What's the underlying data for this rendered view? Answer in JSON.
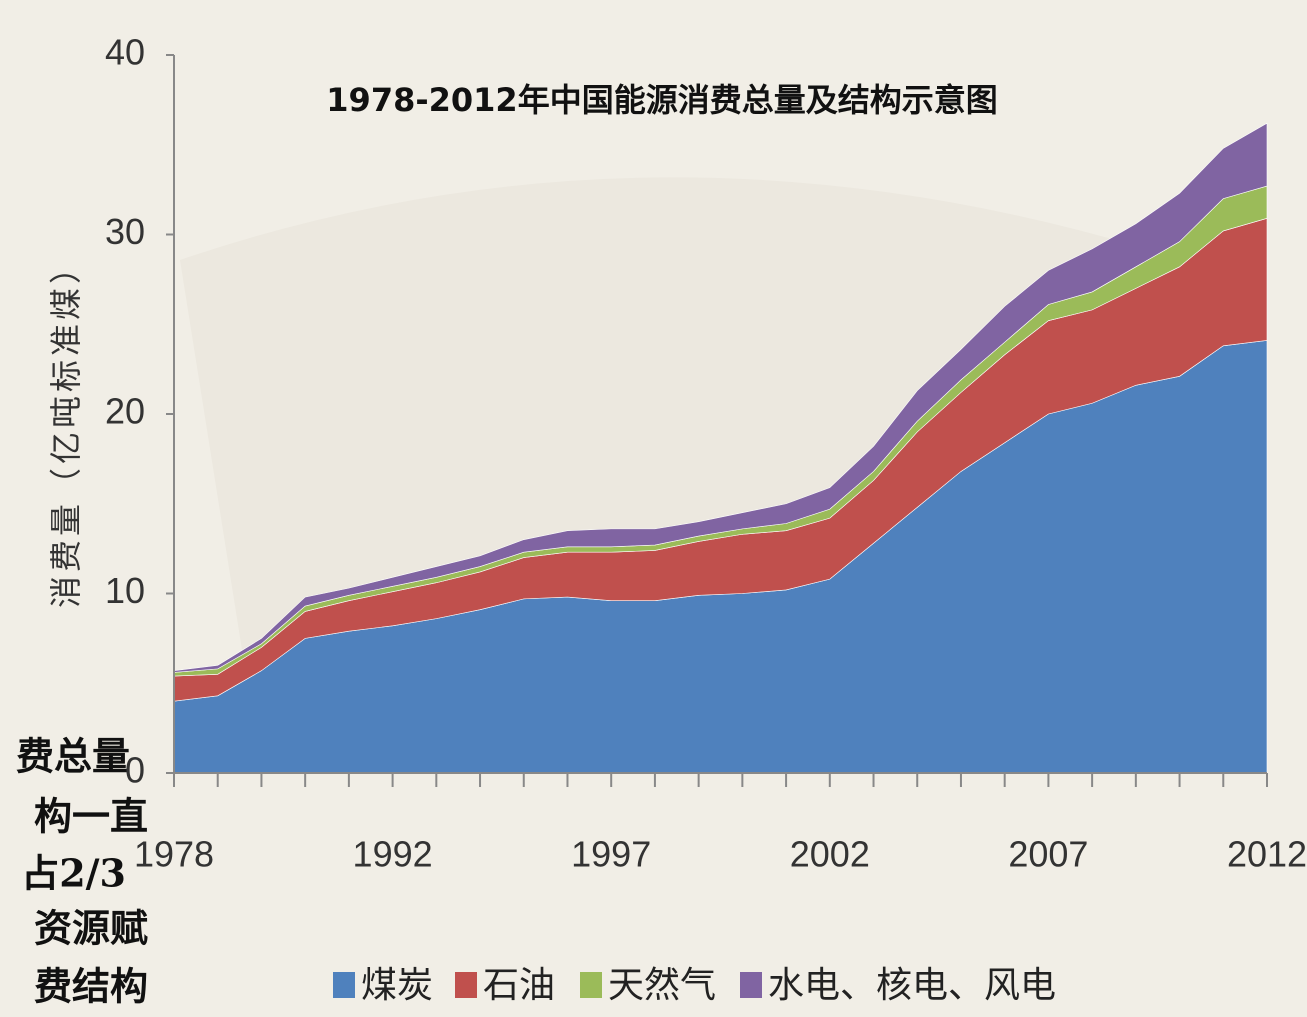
{
  "chart_data": {
    "type": "stacked-area",
    "title": "1978-2012年中国能源消费总量及结构示意图",
    "y_label": "消费量（亿吨标准煤）",
    "categories": [
      "1978",
      null,
      null,
      null,
      null,
      "1992",
      null,
      null,
      null,
      null,
      "1997",
      null,
      null,
      null,
      null,
      "2002",
      null,
      null,
      null,
      null,
      "2007",
      null,
      null,
      null,
      null,
      "2012"
    ],
    "ylim": [
      0,
      40
    ],
    "yticks": [
      0,
      10,
      20,
      30,
      40
    ],
    "series": [
      {
        "name": "煤炭",
        "color": "#4f81bd",
        "values": [
          4.0,
          4.3,
          5.7,
          7.5,
          7.9,
          8.2,
          8.6,
          9.1,
          9.7,
          9.8,
          9.6,
          9.6,
          9.9,
          10.0,
          10.2,
          10.8,
          12.8,
          14.8,
          16.8,
          18.4,
          20.0,
          20.6,
          21.6,
          22.1,
          23.8,
          24.1
        ]
      },
      {
        "name": "石油",
        "color": "#c0504d",
        "values": [
          1.4,
          1.2,
          1.3,
          1.5,
          1.7,
          1.9,
          2.0,
          2.1,
          2.3,
          2.5,
          2.7,
          2.8,
          3.0,
          3.3,
          3.3,
          3.4,
          3.5,
          4.2,
          4.4,
          4.9,
          5.2,
          5.2,
          5.4,
          6.1,
          6.4,
          6.8
        ]
      },
      {
        "name": "天然气",
        "color": "#9bbb59",
        "values": [
          0.2,
          0.3,
          0.2,
          0.3,
          0.3,
          0.3,
          0.3,
          0.3,
          0.3,
          0.3,
          0.3,
          0.3,
          0.3,
          0.3,
          0.4,
          0.5,
          0.5,
          0.6,
          0.7,
          0.7,
          0.9,
          1.0,
          1.2,
          1.4,
          1.8,
          1.8
        ]
      },
      {
        "name": "水电、核电、风电",
        "color": "#8064a2",
        "values": [
          0.1,
          0.2,
          0.3,
          0.5,
          0.4,
          0.5,
          0.6,
          0.6,
          0.7,
          0.9,
          1.0,
          0.9,
          0.8,
          0.9,
          1.1,
          1.2,
          1.4,
          1.7,
          1.7,
          2.0,
          1.9,
          2.4,
          2.4,
          2.7,
          2.8,
          3.5
        ]
      }
    ]
  },
  "side_text": [
    "费总量",
    "构一直",
    "占2/3",
    "资源赋",
    "费结构"
  ]
}
